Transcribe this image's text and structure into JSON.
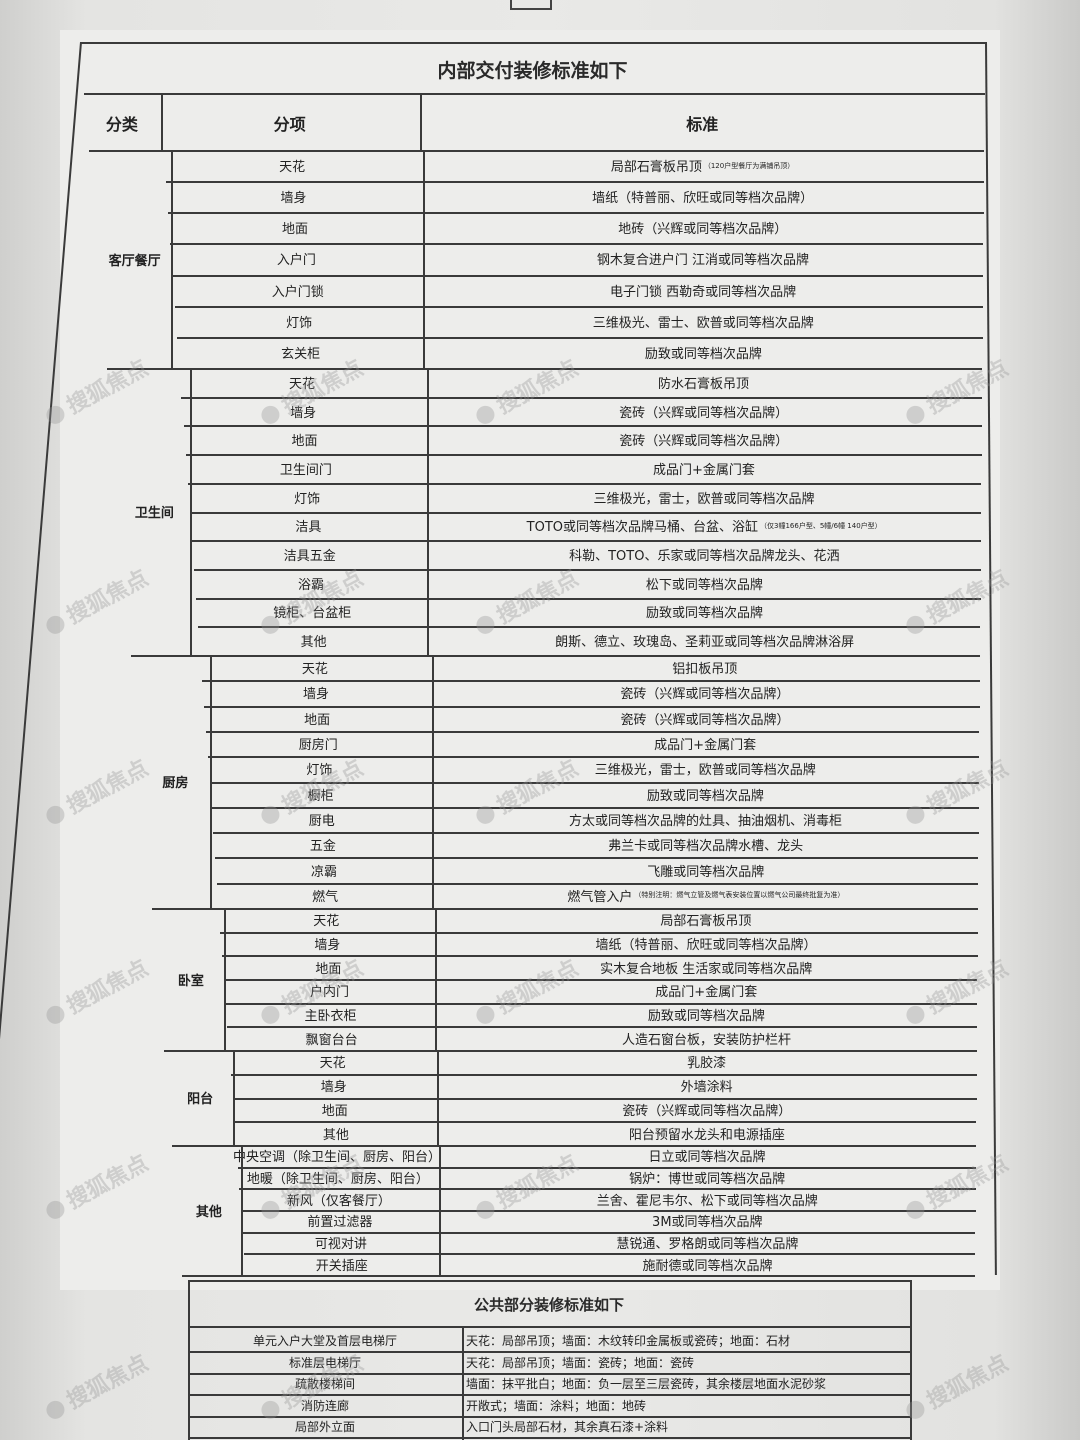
{
  "interior": {
    "title": "内部交付装修标准如下",
    "headers": {
      "category": "分类",
      "item": "分项",
      "standard": "标准"
    },
    "sections": [
      {
        "category": "客厅餐厅",
        "rows": [
          {
            "item": "天花",
            "standard": "局部石膏板吊顶",
            "note": "（120户型餐厅为满铺吊顶）"
          },
          {
            "item": "墙身",
            "standard": "墙纸（特普丽、欣旺或同等档次品牌）"
          },
          {
            "item": "地面",
            "standard": "地砖（兴辉或同等档次品牌）"
          },
          {
            "item": "入户门",
            "standard": "钢木复合进户门 江消或同等档次品牌"
          },
          {
            "item": "入户门锁",
            "standard": "电子门锁 西勒奇或同等档次品牌"
          },
          {
            "item": "灯饰",
            "standard": "三维极光、雷士、欧普或同等档次品牌"
          },
          {
            "item": "玄关柜",
            "standard": "励致或同等档次品牌"
          }
        ]
      },
      {
        "category": "卫生间",
        "rows": [
          {
            "item": "天花",
            "standard": "防水石膏板吊顶"
          },
          {
            "item": "墙身",
            "standard": "瓷砖（兴辉或同等档次品牌）"
          },
          {
            "item": "地面",
            "standard": "瓷砖（兴辉或同等档次品牌）"
          },
          {
            "item": "卫生间门",
            "standard": "成品门+金属门套"
          },
          {
            "item": "灯饰",
            "standard": "三维极光，雷士，欧普或同等档次品牌"
          },
          {
            "item": "洁具",
            "standard": "TOTO或同等档次品牌马桶、台盆、浴缸",
            "note": "（仅3幢166户型、5幢/6幢 140户型）"
          },
          {
            "item": "洁具五金",
            "standard": "科勒、TOTO、乐家或同等档次品牌龙头、花洒"
          },
          {
            "item": "浴霸",
            "standard": "松下或同等档次品牌"
          },
          {
            "item": "镜柜、台盆柜",
            "standard": "励致或同等档次品牌"
          },
          {
            "item": "其他",
            "standard": "朗斯、德立、玫瑰岛、圣莉亚或同等档次品牌淋浴屏"
          }
        ]
      },
      {
        "category": "厨房",
        "rows": [
          {
            "item": "天花",
            "standard": "铝扣板吊顶"
          },
          {
            "item": "墙身",
            "standard": "瓷砖（兴辉或同等档次品牌）"
          },
          {
            "item": "地面",
            "standard": "瓷砖（兴辉或同等档次品牌）"
          },
          {
            "item": "厨房门",
            "standard": "成品门+金属门套"
          },
          {
            "item": "灯饰",
            "standard": "三维极光，雷士，欧普或同等档次品牌"
          },
          {
            "item": "橱柜",
            "standard": "励致或同等档次品牌"
          },
          {
            "item": "厨电",
            "standard": "方太或同等档次品牌的灶具、抽油烟机、消毒柜"
          },
          {
            "item": "五金",
            "standard": "弗兰卡或同等档次品牌水槽、龙头"
          },
          {
            "item": "凉霸",
            "standard": "飞雕或同等档次品牌"
          },
          {
            "item": "燃气",
            "standard": "燃气管入户",
            "note": "（特别注明：燃气立管及燃气表安装位置以燃气公司最终批复为准）"
          }
        ]
      },
      {
        "category": "卧室",
        "rows": [
          {
            "item": "天花",
            "standard": "局部石膏板吊顶"
          },
          {
            "item": "墙身",
            "standard": "墙纸（特普丽、欣旺或同等档次品牌）"
          },
          {
            "item": "地面",
            "standard": "实木复合地板 生活家或同等档次品牌"
          },
          {
            "item": "户内门",
            "standard": "成品门+金属门套"
          },
          {
            "item": "主卧衣柜",
            "standard": "励致或同等档次品牌"
          },
          {
            "item": "飘窗台台",
            "standard": "人造石窗台板，安装防护栏杆"
          }
        ]
      },
      {
        "category": "阳台",
        "rows": [
          {
            "item": "天花",
            "standard": "乳胶漆"
          },
          {
            "item": "墙身",
            "standard": "外墙涂料"
          },
          {
            "item": "地面",
            "standard": "瓷砖（兴辉或同等档次品牌）"
          },
          {
            "item": "其他",
            "standard": "阳台预留水龙头和电源插座"
          }
        ]
      },
      {
        "category": "其他",
        "rows": [
          {
            "item": "中央空调（除卫生间、厨房、阳台）",
            "standard": "日立或同等档次品牌"
          },
          {
            "item": "地暖（除卫生间、厨房、阳台）",
            "standard": "锅炉：博世或同等档次品牌"
          },
          {
            "item": "新风（仅客餐厅）",
            "standard": "兰舍、霍尼韦尔、松下或同等档次品牌"
          },
          {
            "item": "前置过滤器",
            "standard": "3M或同等档次品牌"
          },
          {
            "item": "可视对讲",
            "standard": "慧锐通、罗格朗或同等档次品牌"
          },
          {
            "item": "开关插座",
            "standard": "施耐德或同等档次品牌"
          }
        ]
      }
    ]
  },
  "public": {
    "title": "公共部分装修标准如下",
    "rows": [
      {
        "item": "单元入户大堂及首层电梯厅",
        "standard": "天花：局部吊顶；墙面：木纹转印金属板或瓷砖；地面：石材"
      },
      {
        "item": "标准层电梯厅",
        "standard": "天花：局部吊顶；墙面：瓷砖；地面：瓷砖"
      },
      {
        "item": "疏散楼梯间",
        "standard": "墙面：抹平批白；地面：负一层至三层瓷砖，其余楼层地面水泥砂浆"
      },
      {
        "item": "消防连廊",
        "standard": "开敞式；墙面：涂料；地面：地砖"
      },
      {
        "item": "局部外立面",
        "standard": "入口门头局部石材，其余真石漆+涂料"
      }
    ]
  },
  "watermark": "搜狐焦点"
}
